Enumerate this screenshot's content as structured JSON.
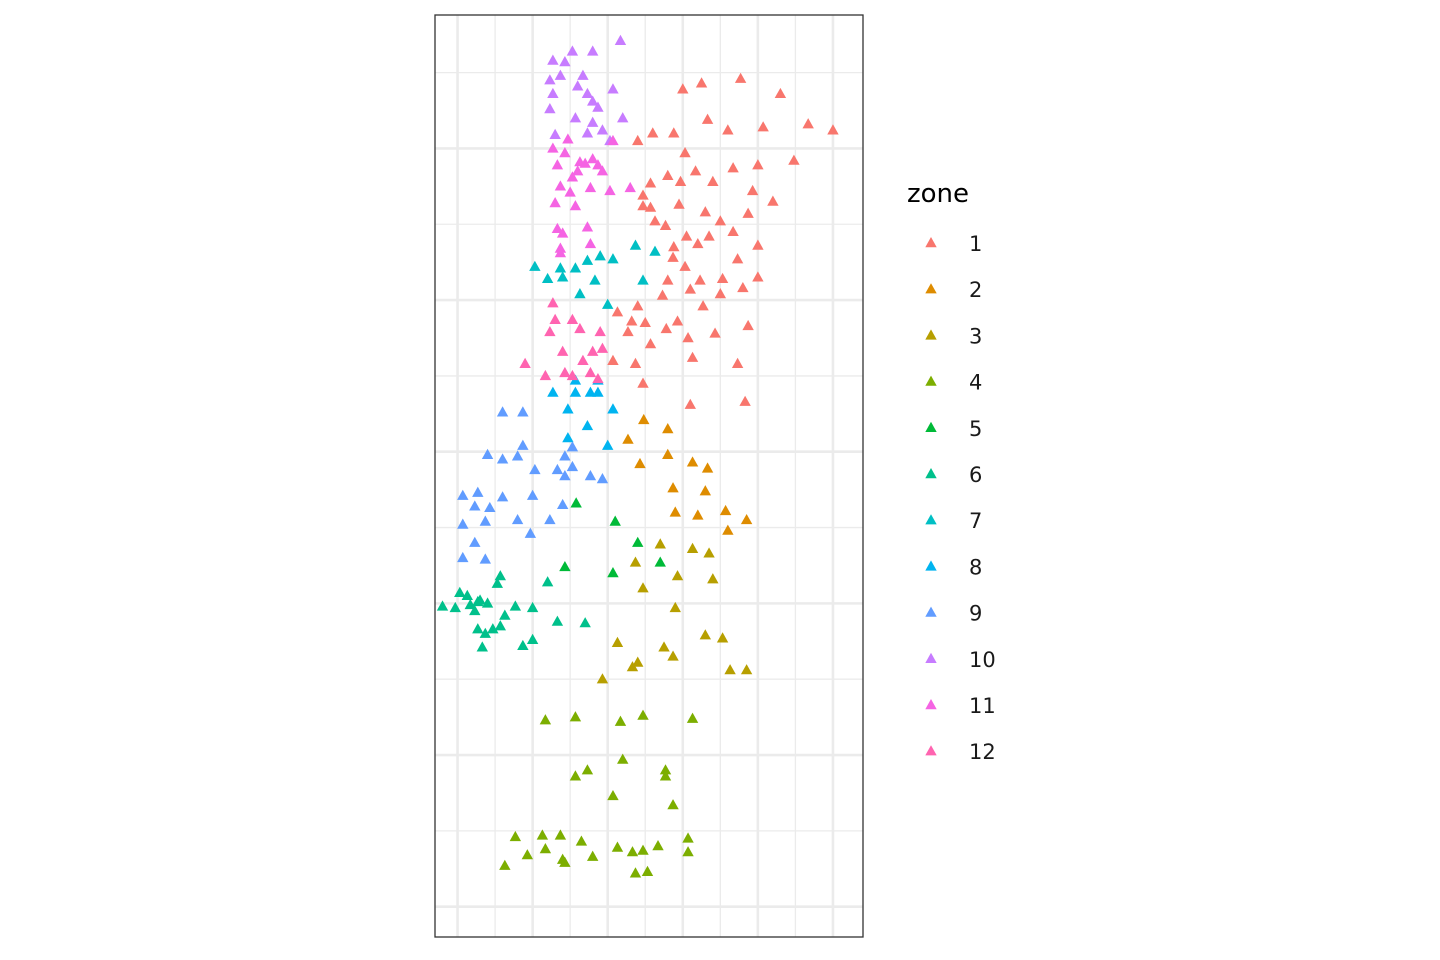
{
  "chart_data": {
    "type": "scatter",
    "title": "",
    "xlabel": "",
    "ylabel": "",
    "grid": true,
    "axis_ticks_labels": false,
    "marker": "triangle",
    "legend": {
      "title": "zone",
      "placement": "right",
      "entries": [
        {
          "label": "1",
          "color": "#F8766D"
        },
        {
          "label": "2",
          "color": "#DE8C00"
        },
        {
          "label": "3",
          "color": "#B79F00"
        },
        {
          "label": "4",
          "color": "#7CAE00"
        },
        {
          "label": "5",
          "color": "#00BA38"
        },
        {
          "label": "6",
          "color": "#00C08B"
        },
        {
          "label": "7",
          "color": "#00BFC4"
        },
        {
          "label": "8",
          "color": "#00B4F0"
        },
        {
          "label": "9",
          "color": "#619CFF"
        },
        {
          "label": "10",
          "color": "#C77CFF"
        },
        {
          "label": "11",
          "color": "#F564E3"
        },
        {
          "label": "12",
          "color": "#FF64B0"
        }
      ]
    },
    "xlim": [
      -0.3,
      5.4
    ],
    "ylim": [
      -0.2,
      5.88
    ],
    "series": [
      {
        "name": "1",
        "points": [
          [
            3.25,
            5.43
          ],
          [
            3.77,
            5.46
          ],
          [
            4.3,
            5.36
          ],
          [
            3.0,
            5.39
          ],
          [
            3.33,
            5.19
          ],
          [
            4.67,
            5.16
          ],
          [
            5.0,
            5.12
          ],
          [
            2.88,
            5.1
          ],
          [
            2.6,
            5.1
          ],
          [
            3.6,
            5.12
          ],
          [
            4.07,
            5.14
          ],
          [
            2.4,
            5.05
          ],
          [
            3.03,
            4.97
          ],
          [
            2.97,
            4.78
          ],
          [
            3.67,
            4.87
          ],
          [
            4.48,
            4.92
          ],
          [
            4.0,
            4.89
          ],
          [
            2.8,
            4.82
          ],
          [
            3.17,
            4.85
          ],
          [
            2.57,
            4.77
          ],
          [
            2.47,
            4.69
          ],
          [
            3.93,
            4.72
          ],
          [
            4.2,
            4.65
          ],
          [
            3.4,
            4.78
          ],
          [
            2.95,
            4.63
          ],
          [
            2.47,
            4.62
          ],
          [
            3.3,
            4.58
          ],
          [
            2.57,
            4.61
          ],
          [
            3.87,
            4.57
          ],
          [
            2.63,
            4.52
          ],
          [
            3.5,
            4.52
          ],
          [
            2.77,
            4.49
          ],
          [
            3.35,
            4.42
          ],
          [
            3.05,
            4.42
          ],
          [
            3.67,
            4.45
          ],
          [
            4.0,
            4.36
          ],
          [
            3.2,
            4.37
          ],
          [
            2.88,
            4.35
          ],
          [
            4.0,
            4.15
          ],
          [
            3.73,
            4.27
          ],
          [
            2.87,
            4.28
          ],
          [
            3.03,
            4.22
          ],
          [
            2.8,
            4.13
          ],
          [
            3.53,
            4.14
          ],
          [
            3.23,
            4.13
          ],
          [
            2.73,
            4.03
          ],
          [
            3.1,
            4.07
          ],
          [
            3.8,
            4.08
          ],
          [
            3.5,
            4.04
          ],
          [
            2.4,
            3.96
          ],
          [
            2.13,
            3.92
          ],
          [
            3.27,
            3.96
          ],
          [
            2.5,
            3.85
          ],
          [
            2.32,
            3.86
          ],
          [
            2.93,
            3.86
          ],
          [
            3.87,
            3.83
          ],
          [
            2.27,
            3.79
          ],
          [
            2.78,
            3.81
          ],
          [
            2.57,
            3.71
          ],
          [
            3.43,
            3.78
          ],
          [
            3.07,
            3.75
          ],
          [
            3.73,
            3.58
          ],
          [
            3.13,
            3.62
          ],
          [
            2.07,
            3.6
          ],
          [
            2.37,
            3.58
          ],
          [
            2.47,
            3.45
          ],
          [
            3.83,
            3.33
          ],
          [
            3.1,
            3.31
          ]
        ]
      },
      {
        "name": "2",
        "points": [
          [
            2.48,
            3.21
          ],
          [
            2.8,
            3.15
          ],
          [
            2.27,
            3.08
          ],
          [
            2.8,
            2.98
          ],
          [
            2.43,
            2.92
          ],
          [
            3.13,
            2.93
          ],
          [
            3.33,
            2.89
          ],
          [
            2.87,
            2.76
          ],
          [
            3.3,
            2.74
          ],
          [
            2.9,
            2.6
          ],
          [
            3.57,
            2.61
          ],
          [
            3.2,
            2.58
          ],
          [
            3.85,
            2.55
          ],
          [
            3.6,
            2.48
          ]
        ]
      },
      {
        "name": "3",
        "points": [
          [
            2.7,
            2.39
          ],
          [
            3.13,
            2.36
          ],
          [
            3.35,
            2.33
          ],
          [
            2.37,
            2.27
          ],
          [
            2.93,
            2.18
          ],
          [
            3.4,
            2.16
          ],
          [
            2.47,
            2.1
          ],
          [
            2.9,
            1.97
          ],
          [
            3.3,
            1.79
          ],
          [
            3.53,
            1.77
          ],
          [
            2.75,
            1.71
          ],
          [
            2.13,
            1.74
          ],
          [
            2.4,
            1.61
          ],
          [
            2.87,
            1.65
          ],
          [
            2.33,
            1.58
          ],
          [
            3.63,
            1.56
          ],
          [
            3.85,
            1.56
          ],
          [
            1.93,
            1.5
          ]
        ]
      },
      {
        "name": "4",
        "points": [
          [
            2.47,
            1.26
          ],
          [
            1.17,
            1.23
          ],
          [
            1.57,
            1.25
          ],
          [
            2.17,
            1.22
          ],
          [
            3.13,
            1.24
          ],
          [
            2.2,
            0.97
          ],
          [
            1.73,
            0.9
          ],
          [
            2.77,
            0.9
          ],
          [
            1.57,
            0.86
          ],
          [
            2.77,
            0.86
          ],
          [
            2.07,
            0.73
          ],
          [
            2.87,
            0.67
          ],
          [
            0.77,
            0.46
          ],
          [
            1.13,
            0.47
          ],
          [
            1.37,
            0.47
          ],
          [
            3.07,
            0.45
          ],
          [
            1.65,
            0.43
          ],
          [
            2.13,
            0.39
          ],
          [
            2.67,
            0.4
          ],
          [
            2.47,
            0.37
          ],
          [
            1.17,
            0.38
          ],
          [
            3.07,
            0.36
          ],
          [
            0.93,
            0.34
          ],
          [
            1.4,
            0.31
          ],
          [
            2.33,
            0.36
          ],
          [
            1.8,
            0.33
          ],
          [
            0.63,
            0.27
          ],
          [
            1.43,
            0.29
          ],
          [
            2.37,
            0.22
          ],
          [
            2.53,
            0.23
          ]
        ]
      },
      {
        "name": "5",
        "points": [
          [
            1.58,
            2.66
          ],
          [
            2.1,
            2.54
          ],
          [
            2.4,
            2.4
          ],
          [
            2.7,
            2.27
          ],
          [
            1.43,
            2.24
          ],
          [
            2.07,
            2.2
          ]
        ]
      },
      {
        "name": "6",
        "points": [
          [
            1.2,
            2.14
          ],
          [
            0.57,
            2.18
          ],
          [
            0.03,
            2.07
          ],
          [
            0.53,
            2.13
          ],
          [
            0.3,
            2.02
          ],
          [
            0.17,
            1.99
          ],
          [
            0.27,
            2.01
          ],
          [
            0.13,
            2.05
          ],
          [
            0.4,
            2.0
          ],
          [
            -0.2,
            1.98
          ],
          [
            -0.03,
            1.97
          ],
          [
            0.23,
            1.95
          ],
          [
            0.77,
            1.98
          ],
          [
            1.0,
            1.97
          ],
          [
            0.63,
            1.92
          ],
          [
            1.33,
            1.88
          ],
          [
            1.7,
            1.87
          ],
          [
            0.27,
            1.83
          ],
          [
            0.57,
            1.85
          ],
          [
            0.47,
            1.83
          ],
          [
            0.37,
            1.8
          ],
          [
            1.0,
            1.76
          ],
          [
            0.33,
            1.71
          ],
          [
            0.87,
            1.72
          ]
        ]
      },
      {
        "name": "7",
        "points": [
          [
            2.37,
            4.36
          ],
          [
            2.63,
            4.32
          ],
          [
            2.47,
            4.13
          ],
          [
            1.9,
            4.29
          ],
          [
            1.73,
            4.26
          ],
          [
            1.37,
            4.21
          ],
          [
            1.57,
            4.21
          ],
          [
            2.07,
            4.27
          ],
          [
            1.03,
            4.22
          ],
          [
            1.4,
            4.15
          ],
          [
            2.0,
            3.97
          ],
          [
            1.2,
            4.14
          ],
          [
            1.83,
            4.13
          ],
          [
            1.63,
            4.04
          ]
        ]
      },
      {
        "name": "8",
        "points": [
          [
            1.87,
            3.47
          ],
          [
            1.57,
            3.47
          ],
          [
            1.77,
            3.39
          ],
          [
            1.27,
            3.39
          ],
          [
            1.57,
            3.39
          ],
          [
            1.87,
            3.39
          ],
          [
            1.47,
            3.28
          ],
          [
            2.07,
            3.28
          ],
          [
            1.73,
            3.17
          ],
          [
            2.0,
            3.04
          ],
          [
            1.47,
            3.09
          ]
        ]
      },
      {
        "name": "9",
        "points": [
          [
            0.6,
            3.26
          ],
          [
            0.87,
            3.26
          ],
          [
            0.87,
            3.04
          ],
          [
            1.53,
            3.03
          ],
          [
            0.4,
            2.98
          ],
          [
            0.6,
            2.95
          ],
          [
            0.8,
            2.97
          ],
          [
            1.43,
            2.97
          ],
          [
            1.33,
            2.88
          ],
          [
            1.53,
            2.9
          ],
          [
            1.03,
            2.88
          ],
          [
            1.43,
            2.84
          ],
          [
            1.77,
            2.84
          ],
          [
            1.93,
            2.82
          ],
          [
            0.27,
            2.73
          ],
          [
            0.07,
            2.71
          ],
          [
            0.23,
            2.64
          ],
          [
            0.6,
            2.7
          ],
          [
            1.0,
            2.71
          ],
          [
            0.43,
            2.63
          ],
          [
            1.4,
            2.65
          ],
          [
            0.8,
            2.55
          ],
          [
            1.23,
            2.55
          ],
          [
            0.07,
            2.52
          ],
          [
            0.37,
            2.54
          ],
          [
            0.97,
            2.46
          ],
          [
            0.23,
            2.4
          ],
          [
            0.07,
            2.3
          ],
          [
            0.37,
            2.29
          ]
        ]
      },
      {
        "name": "10",
        "points": [
          [
            2.17,
            5.71
          ],
          [
            1.53,
            5.64
          ],
          [
            1.8,
            5.64
          ],
          [
            1.27,
            5.58
          ],
          [
            1.43,
            5.57
          ],
          [
            1.37,
            5.48
          ],
          [
            1.67,
            5.48
          ],
          [
            1.23,
            5.45
          ],
          [
            1.6,
            5.41
          ],
          [
            1.73,
            5.36
          ],
          [
            1.27,
            5.36
          ],
          [
            2.07,
            5.39
          ],
          [
            1.8,
            5.31
          ],
          [
            1.87,
            5.27
          ],
          [
            1.23,
            5.26
          ],
          [
            1.57,
            5.2
          ],
          [
            1.8,
            5.17
          ],
          [
            2.2,
            5.2
          ],
          [
            1.93,
            5.12
          ],
          [
            2.03,
            5.05
          ],
          [
            1.3,
            5.09
          ],
          [
            1.73,
            5.1
          ]
        ]
      },
      {
        "name": "11",
        "points": [
          [
            1.47,
            5.06
          ],
          [
            1.27,
            5.0
          ],
          [
            1.8,
            4.93
          ],
          [
            2.07,
            5.05
          ],
          [
            1.43,
            4.97
          ],
          [
            1.63,
            4.91
          ],
          [
            1.7,
            4.9
          ],
          [
            1.93,
            4.85
          ],
          [
            1.87,
            4.89
          ],
          [
            1.6,
            4.85
          ],
          [
            1.33,
            4.89
          ],
          [
            1.53,
            4.81
          ],
          [
            1.37,
            4.75
          ],
          [
            1.77,
            4.74
          ],
          [
            1.5,
            4.71
          ],
          [
            1.3,
            4.64
          ],
          [
            1.57,
            4.62
          ],
          [
            2.3,
            4.74
          ],
          [
            2.03,
            4.72
          ],
          [
            1.33,
            4.47
          ],
          [
            1.73,
            4.48
          ],
          [
            1.77,
            4.37
          ],
          [
            1.4,
            4.44
          ],
          [
            1.37,
            4.34
          ],
          [
            1.37,
            4.31
          ]
        ]
      },
      {
        "name": "12",
        "points": [
          [
            1.27,
            3.98
          ],
          [
            1.3,
            3.87
          ],
          [
            1.53,
            3.87
          ],
          [
            1.63,
            3.81
          ],
          [
            1.23,
            3.79
          ],
          [
            1.9,
            3.79
          ],
          [
            1.93,
            3.68
          ],
          [
            1.4,
            3.66
          ],
          [
            1.8,
            3.66
          ],
          [
            1.67,
            3.6
          ],
          [
            0.9,
            3.58
          ],
          [
            1.17,
            3.5
          ],
          [
            1.43,
            3.52
          ],
          [
            1.77,
            3.52
          ],
          [
            1.87,
            3.48
          ],
          [
            1.53,
            3.5
          ]
        ]
      }
    ]
  }
}
